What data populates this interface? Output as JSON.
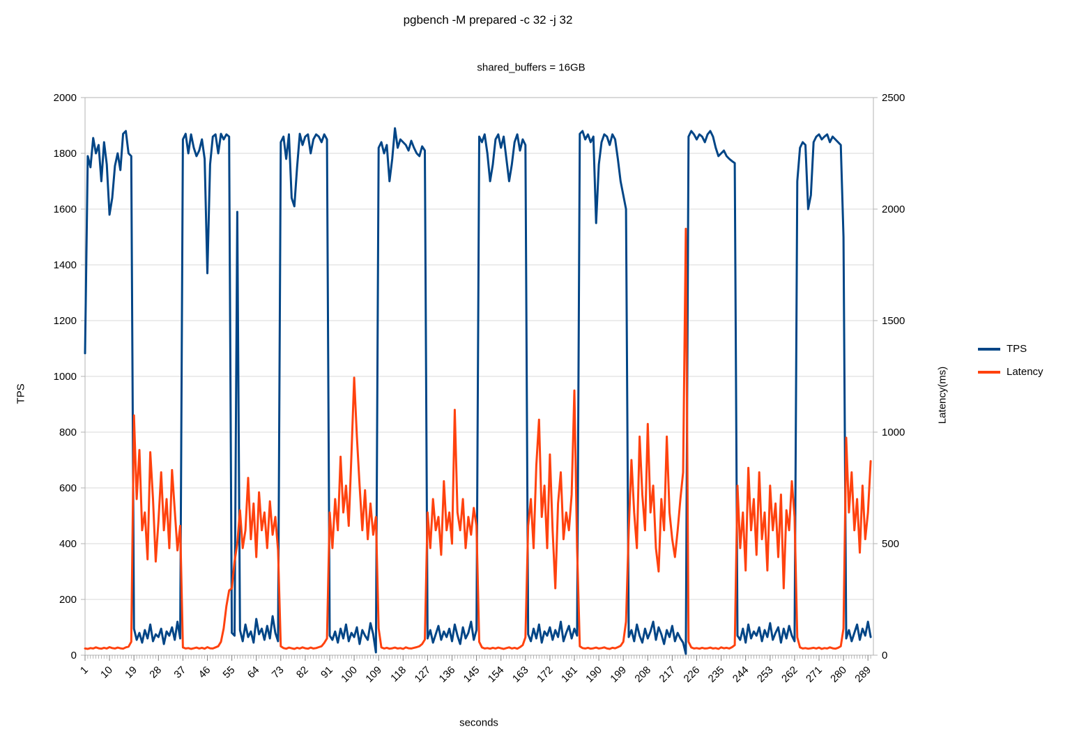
{
  "chart_data": {
    "type": "line",
    "title": "pgbench -M prepared -c 32 -j 32",
    "subtitle": "shared_buffers = 16GB",
    "xlabel": "seconds",
    "ylabel_left": "TPS",
    "ylabel_right": "Latency(ms)",
    "background": "#ffffff",
    "grid": "horizontal",
    "legend_position": "right",
    "x_range": [
      1,
      291
    ],
    "x_ticks": [
      1,
      10,
      19,
      28,
      37,
      46,
      55,
      64,
      73,
      82,
      91,
      100,
      109,
      118,
      127,
      136,
      145,
      154,
      163,
      172,
      181,
      190,
      199,
      208,
      217,
      226,
      235,
      244,
      253,
      262,
      271,
      280,
      289
    ],
    "y_left": {
      "min": 0,
      "max": 2000,
      "step": 200
    },
    "y_right": {
      "min": 0,
      "max": 2500,
      "step": 500
    },
    "series": [
      {
        "name": "TPS",
        "axis": "left",
        "color": "#004586",
        "x_start": 1,
        "x_step": 1,
        "values": [
          1083,
          1790,
          1750,
          1855,
          1800,
          1830,
          1700,
          1840,
          1760,
          1580,
          1640,
          1755,
          1800,
          1740,
          1870,
          1880,
          1800,
          1790,
          95,
          55,
          80,
          45,
          90,
          60,
          110,
          50,
          75,
          65,
          95,
          40,
          85,
          70,
          100,
          55,
          120,
          60,
          1850,
          1870,
          1800,
          1868,
          1820,
          1790,
          1810,
          1850,
          1780,
          1370,
          1760,
          1860,
          1868,
          1800,
          1870,
          1850,
          1868,
          1860,
          80,
          70,
          1590,
          90,
          50,
          110,
          65,
          85,
          45,
          130,
          75,
          95,
          55,
          105,
          60,
          140,
          80,
          50,
          1840,
          1860,
          1780,
          1868,
          1640,
          1610,
          1750,
          1870,
          1830,
          1860,
          1868,
          1800,
          1850,
          1868,
          1860,
          1840,
          1868,
          1850,
          70,
          55,
          85,
          45,
          95,
          60,
          110,
          50,
          80,
          65,
          100,
          40,
          90,
          70,
          55,
          115,
          75,
          10,
          1820,
          1840,
          1800,
          1830,
          1700,
          1780,
          1890,
          1820,
          1850,
          1840,
          1830,
          1810,
          1845,
          1820,
          1800,
          1790,
          1825,
          1810,
          60,
          90,
          45,
          75,
          105,
          55,
          85,
          65,
          95,
          50,
          110,
          70,
          40,
          100,
          60,
          80,
          120,
          55,
          90,
          1860,
          1840,
          1868,
          1800,
          1700,
          1760,
          1850,
          1868,
          1820,
          1860,
          1780,
          1700,
          1760,
          1840,
          1868,
          1810,
          1850,
          1830,
          75,
          50,
          95,
          60,
          110,
          45,
          85,
          70,
          100,
          55,
          90,
          65,
          120,
          50,
          80,
          105,
          60,
          95,
          70,
          1870,
          1880,
          1850,
          1868,
          1840,
          1860,
          1550,
          1760,
          1840,
          1868,
          1860,
          1830,
          1868,
          1850,
          1780,
          1700,
          1650,
          1600,
          65,
          90,
          50,
          110,
          70,
          45,
          95,
          60,
          85,
          120,
          55,
          100,
          75,
          40,
          90,
          65,
          105,
          50,
          80,
          60,
          45,
          5,
          1860,
          1880,
          1868,
          1850,
          1868,
          1860,
          1840,
          1868,
          1880,
          1860,
          1820,
          1790,
          1800,
          1810,
          1790,
          1780,
          1772,
          1765,
          70,
          55,
          95,
          45,
          110,
          60,
          85,
          70,
          100,
          50,
          90,
          65,
          115,
          55,
          80,
          100,
          45,
          95,
          60,
          105,
          70,
          50,
          1700,
          1820,
          1840,
          1830,
          1600,
          1650,
          1840,
          1860,
          1868,
          1850,
          1860,
          1868,
          1840,
          1860,
          1850,
          1840,
          1830,
          1500,
          60,
          90,
          50,
          80,
          110,
          55,
          95,
          70,
          120,
          65
        ]
      },
      {
        "name": "Latency",
        "axis": "right",
        "color": "#FF420E",
        "x_start": 1,
        "x_step": 1,
        "values": [
          30,
          28,
          32,
          30,
          35,
          31,
          29,
          33,
          30,
          36,
          32,
          30,
          34,
          31,
          29,
          35,
          38,
          60,
          1075,
          700,
          920,
          560,
          640,
          430,
          910,
          700,
          420,
          600,
          820,
          560,
          700,
          480,
          830,
          650,
          470,
          580,
          35,
          30,
          32,
          28,
          31,
          34,
          30,
          33,
          29,
          36,
          31,
          30,
          35,
          40,
          60,
          120,
          220,
          290,
          300,
          420,
          500,
          650,
          480,
          560,
          795,
          520,
          680,
          440,
          730,
          560,
          640,
          480,
          690,
          540,
          620,
          470,
          40,
          32,
          29,
          34,
          31,
          28,
          33,
          30,
          35,
          31,
          29,
          34,
          30,
          32,
          36,
          40,
          55,
          75,
          640,
          480,
          700,
          560,
          890,
          640,
          760,
          580,
          900,
          1244,
          980,
          760,
          560,
          740,
          520,
          680,
          540,
          620,
          120,
          35,
          30,
          33,
          29,
          31,
          34,
          30,
          32,
          28,
          35,
          31,
          30,
          33,
          36,
          40,
          50,
          70,
          640,
          480,
          700,
          560,
          620,
          450,
          780,
          560,
          640,
          500,
          1100,
          640,
          560,
          700,
          480,
          620,
          540,
          660,
          580,
          60,
          35,
          30,
          32,
          29,
          33,
          30,
          34,
          31,
          28,
          32,
          35,
          30,
          33,
          29,
          36,
          45,
          80,
          580,
          700,
          480,
          850,
          1056,
          620,
          760,
          480,
          900,
          560,
          300,
          680,
          820,
          520,
          640,
          560,
          720,
          1187,
          480,
          40,
          32,
          30,
          33,
          29,
          31,
          34,
          30,
          32,
          35,
          30,
          28,
          33,
          31,
          36,
          42,
          60,
          150,
          560,
          875,
          640,
          480,
          980,
          720,
          560,
          1037,
          640,
          760,
          480,
          375,
          700,
          560,
          980,
          640,
          520,
          440,
          560,
          700,
          820,
          1912,
          60,
          35,
          30,
          32,
          29,
          33,
          30,
          31,
          34,
          30,
          32,
          28,
          35,
          31,
          33,
          30,
          36,
          45,
          760,
          480,
          640,
          380,
          840,
          560,
          700,
          450,
          820,
          520,
          640,
          380,
          760,
          560,
          680,
          440,
          720,
          300,
          650,
          560,
          780,
          620,
          80,
          35,
          30,
          32,
          29,
          31,
          33,
          30,
          34,
          28,
          32,
          30,
          35,
          31,
          29,
          33,
          40,
          120,
          975,
          640,
          820,
          560,
          700,
          460,
          760,
          520,
          640,
          870
        ]
      }
    ]
  }
}
